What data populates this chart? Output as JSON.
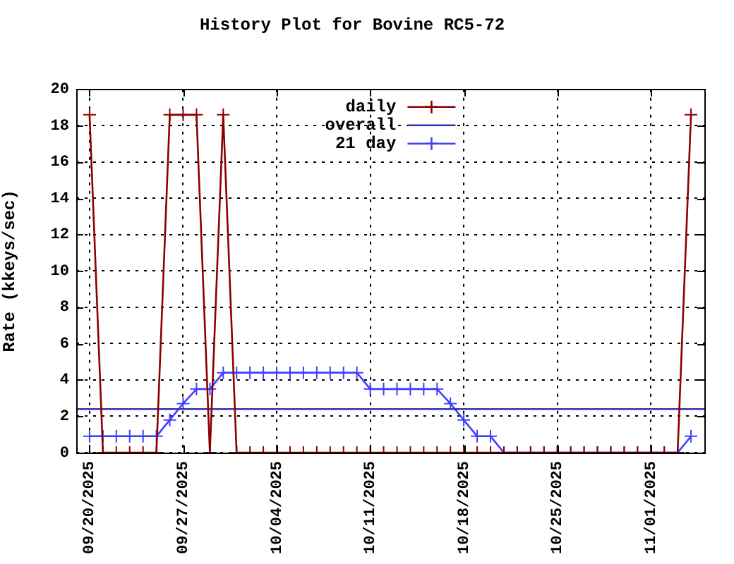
{
  "chart_data": {
    "type": "line",
    "title": "History Plot for Bovine RC5-72",
    "ylabel": "Rate (kkeys/sec)",
    "x": [
      "2025-09-20",
      "2025-09-21",
      "2025-09-22",
      "2025-09-23",
      "2025-09-24",
      "2025-09-25",
      "2025-09-26",
      "2025-09-27",
      "2025-09-28",
      "2025-09-29",
      "2025-09-30",
      "2025-10-01",
      "2025-10-02",
      "2025-10-03",
      "2025-10-04",
      "2025-10-05",
      "2025-10-06",
      "2025-10-07",
      "2025-10-08",
      "2025-10-09",
      "2025-10-10",
      "2025-10-11",
      "2025-10-12",
      "2025-10-13",
      "2025-10-14",
      "2025-10-15",
      "2025-10-16",
      "2025-10-17",
      "2025-10-18",
      "2025-10-19",
      "2025-10-20",
      "2025-10-21",
      "2025-10-22",
      "2025-10-23",
      "2025-10-24",
      "2025-10-25",
      "2025-10-26",
      "2025-10-27",
      "2025-10-28",
      "2025-10-29",
      "2025-10-30",
      "2025-10-31",
      "2025-11-01",
      "2025-11-02",
      "2025-11-03",
      "2025-11-04"
    ],
    "series": [
      {
        "name": "daily",
        "color": "#8b0000",
        "marker": "cross",
        "values": [
          18.6,
          0,
          0,
          0,
          0,
          0,
          18.6,
          18.6,
          18.6,
          0,
          18.6,
          0,
          0,
          0,
          0,
          0,
          0,
          0,
          0,
          0,
          0,
          0,
          0,
          0,
          0,
          0,
          0,
          0,
          0,
          0,
          0,
          0,
          0,
          0,
          0,
          0,
          0,
          0,
          0,
          0,
          0,
          0,
          0,
          0,
          0,
          18.6
        ]
      },
      {
        "name": "overall",
        "color": "#3333b2",
        "marker": "none",
        "x": [
          "2025-09-19",
          "2025-11-05"
        ],
        "values": [
          2.4,
          2.4
        ]
      },
      {
        "name": "21 day",
        "color": "#4040ff",
        "marker": "cross",
        "values": [
          0.9,
          0.9,
          0.9,
          0.9,
          0.9,
          0.9,
          1.8,
          2.7,
          3.5,
          3.5,
          4.4,
          4.4,
          4.4,
          4.4,
          4.4,
          4.4,
          4.4,
          4.4,
          4.4,
          4.4,
          4.4,
          3.5,
          3.5,
          3.5,
          3.5,
          3.5,
          3.5,
          2.7,
          1.8,
          0.9,
          0.9,
          0,
          0,
          0,
          0,
          0,
          0,
          0,
          0,
          0,
          0,
          0,
          0,
          0,
          0,
          0.9
        ]
      }
    ],
    "xlim": [
      "2025-09-19",
      "2025-11-05"
    ],
    "xticks": [
      {
        "value": "2025-09-20",
        "label": "09/20/2025"
      },
      {
        "value": "2025-09-27",
        "label": "09/27/2025"
      },
      {
        "value": "2025-10-04",
        "label": "10/04/2025"
      },
      {
        "value": "2025-10-11",
        "label": "10/11/2025"
      },
      {
        "value": "2025-10-18",
        "label": "10/18/2025"
      },
      {
        "value": "2025-10-25",
        "label": "10/25/2025"
      },
      {
        "value": "2025-11-01",
        "label": "11/01/2025"
      }
    ],
    "ylim": [
      0,
      20
    ],
    "yticks": [
      0,
      2,
      4,
      6,
      8,
      10,
      12,
      14,
      16,
      18,
      20
    ],
    "grid": true,
    "legend": "top",
    "line_style": "solid"
  }
}
